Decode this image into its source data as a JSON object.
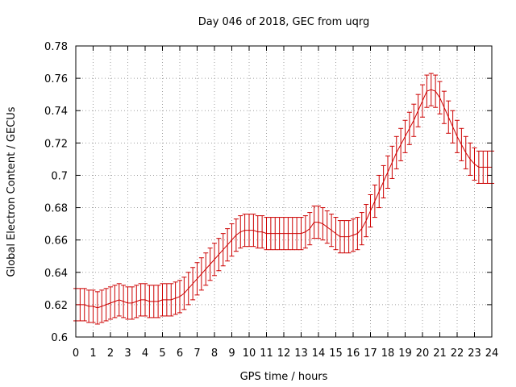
{
  "chart_data": {
    "type": "line",
    "title": "Day 046 of 2018, GEC from uqrg",
    "xlabel": "GPS time / hours",
    "ylabel": "Global Electron Content / GECUs",
    "xlim": [
      0,
      24
    ],
    "ylim": [
      0.6,
      0.78
    ],
    "xticks": [
      0,
      1,
      2,
      3,
      4,
      5,
      6,
      7,
      8,
      9,
      10,
      11,
      12,
      13,
      14,
      15,
      16,
      17,
      18,
      19,
      20,
      21,
      22,
      23,
      24
    ],
    "yticks": [
      0.6,
      0.62,
      0.64,
      0.66,
      0.68,
      0.7,
      0.72,
      0.74,
      0.76,
      0.78
    ],
    "ytick_labels": [
      "0.6",
      "0.62",
      "0.64",
      "0.66",
      "0.68",
      "0.7",
      "0.72",
      "0.74",
      "0.76",
      "0.78"
    ],
    "grid": true,
    "series": [
      {
        "color": "#cc0000",
        "error": 0.01,
        "x": [
          0,
          0.25,
          0.5,
          0.75,
          1,
          1.25,
          1.5,
          1.75,
          2,
          2.25,
          2.5,
          2.75,
          3,
          3.25,
          3.5,
          3.75,
          4,
          4.25,
          4.5,
          4.75,
          5,
          5.25,
          5.5,
          5.75,
          6,
          6.25,
          6.5,
          6.75,
          7,
          7.25,
          7.5,
          7.75,
          8,
          8.25,
          8.5,
          8.75,
          9,
          9.25,
          9.5,
          9.75,
          10,
          10.25,
          10.5,
          10.75,
          11,
          11.25,
          11.5,
          11.75,
          12,
          12.25,
          12.5,
          12.75,
          13,
          13.25,
          13.5,
          13.75,
          14,
          14.25,
          14.5,
          14.75,
          15,
          15.25,
          15.5,
          15.75,
          16,
          16.25,
          16.5,
          16.75,
          17,
          17.25,
          17.5,
          17.75,
          18,
          18.25,
          18.5,
          18.75,
          19,
          19.25,
          19.5,
          19.75,
          20,
          20.25,
          20.5,
          20.75,
          21,
          21.25,
          21.5,
          21.75,
          22,
          22.25,
          22.5,
          22.75,
          23,
          23.25,
          23.5,
          23.75,
          24
        ],
        "y": [
          0.62,
          0.62,
          0.62,
          0.619,
          0.619,
          0.618,
          0.619,
          0.62,
          0.621,
          0.622,
          0.623,
          0.622,
          0.621,
          0.621,
          0.622,
          0.623,
          0.623,
          0.622,
          0.622,
          0.622,
          0.623,
          0.623,
          0.623,
          0.624,
          0.625,
          0.627,
          0.63,
          0.633,
          0.636,
          0.639,
          0.642,
          0.645,
          0.648,
          0.651,
          0.654,
          0.657,
          0.66,
          0.663,
          0.665,
          0.666,
          0.666,
          0.666,
          0.665,
          0.665,
          0.664,
          0.664,
          0.664,
          0.664,
          0.664,
          0.664,
          0.664,
          0.664,
          0.664,
          0.665,
          0.667,
          0.671,
          0.671,
          0.67,
          0.668,
          0.666,
          0.664,
          0.662,
          0.662,
          0.662,
          0.663,
          0.664,
          0.667,
          0.672,
          0.678,
          0.684,
          0.69,
          0.696,
          0.702,
          0.708,
          0.714,
          0.719,
          0.724,
          0.729,
          0.734,
          0.74,
          0.746,
          0.752,
          0.753,
          0.752,
          0.748,
          0.742,
          0.736,
          0.73,
          0.724,
          0.719,
          0.714,
          0.71,
          0.707,
          0.705,
          0.705,
          0.705,
          0.705
        ]
      }
    ]
  }
}
